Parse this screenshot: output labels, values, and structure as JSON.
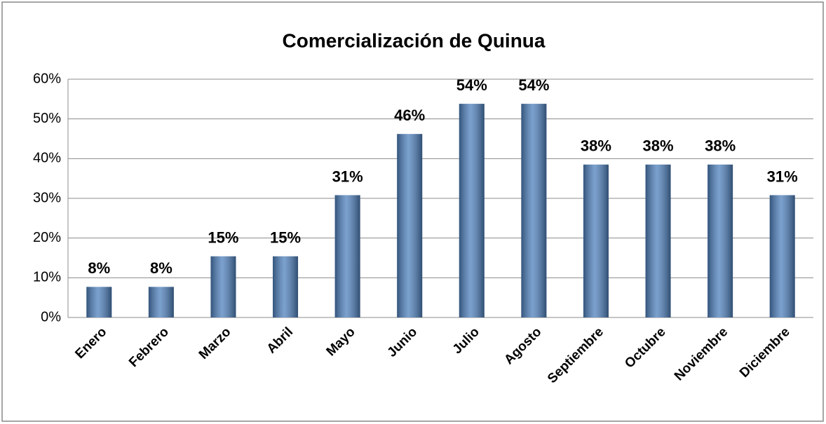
{
  "chart_data": {
    "type": "bar",
    "title": "Comercialización de Quinua",
    "categories": [
      "Enero",
      "Febrero",
      "Marzo",
      "Abril",
      "Mayo",
      "Junio",
      "Julio",
      "Agosto",
      "Septiembre",
      "Octubre",
      "Noviembre",
      "Diciembre"
    ],
    "values": [
      7.7,
      7.7,
      15.4,
      15.4,
      30.8,
      46.2,
      53.8,
      53.8,
      38.5,
      38.5,
      38.5,
      30.8
    ],
    "value_labels": [
      "8%",
      "8%",
      "15%",
      "15%",
      "31%",
      "46%",
      "54%",
      "54%",
      "38%",
      "38%",
      "38%",
      "31%"
    ],
    "color": "#4f81bd",
    "ylim": [
      0,
      60
    ],
    "yticks": [
      {
        "value": 0,
        "label": "0%"
      },
      {
        "value": 10,
        "label": "10%"
      },
      {
        "value": 20,
        "label": "20%"
      },
      {
        "value": 30,
        "label": "30%"
      },
      {
        "value": 40,
        "label": "40%"
      },
      {
        "value": 50,
        "label": "50%"
      },
      {
        "value": 60,
        "label": "60%"
      }
    ],
    "grid": true
  }
}
